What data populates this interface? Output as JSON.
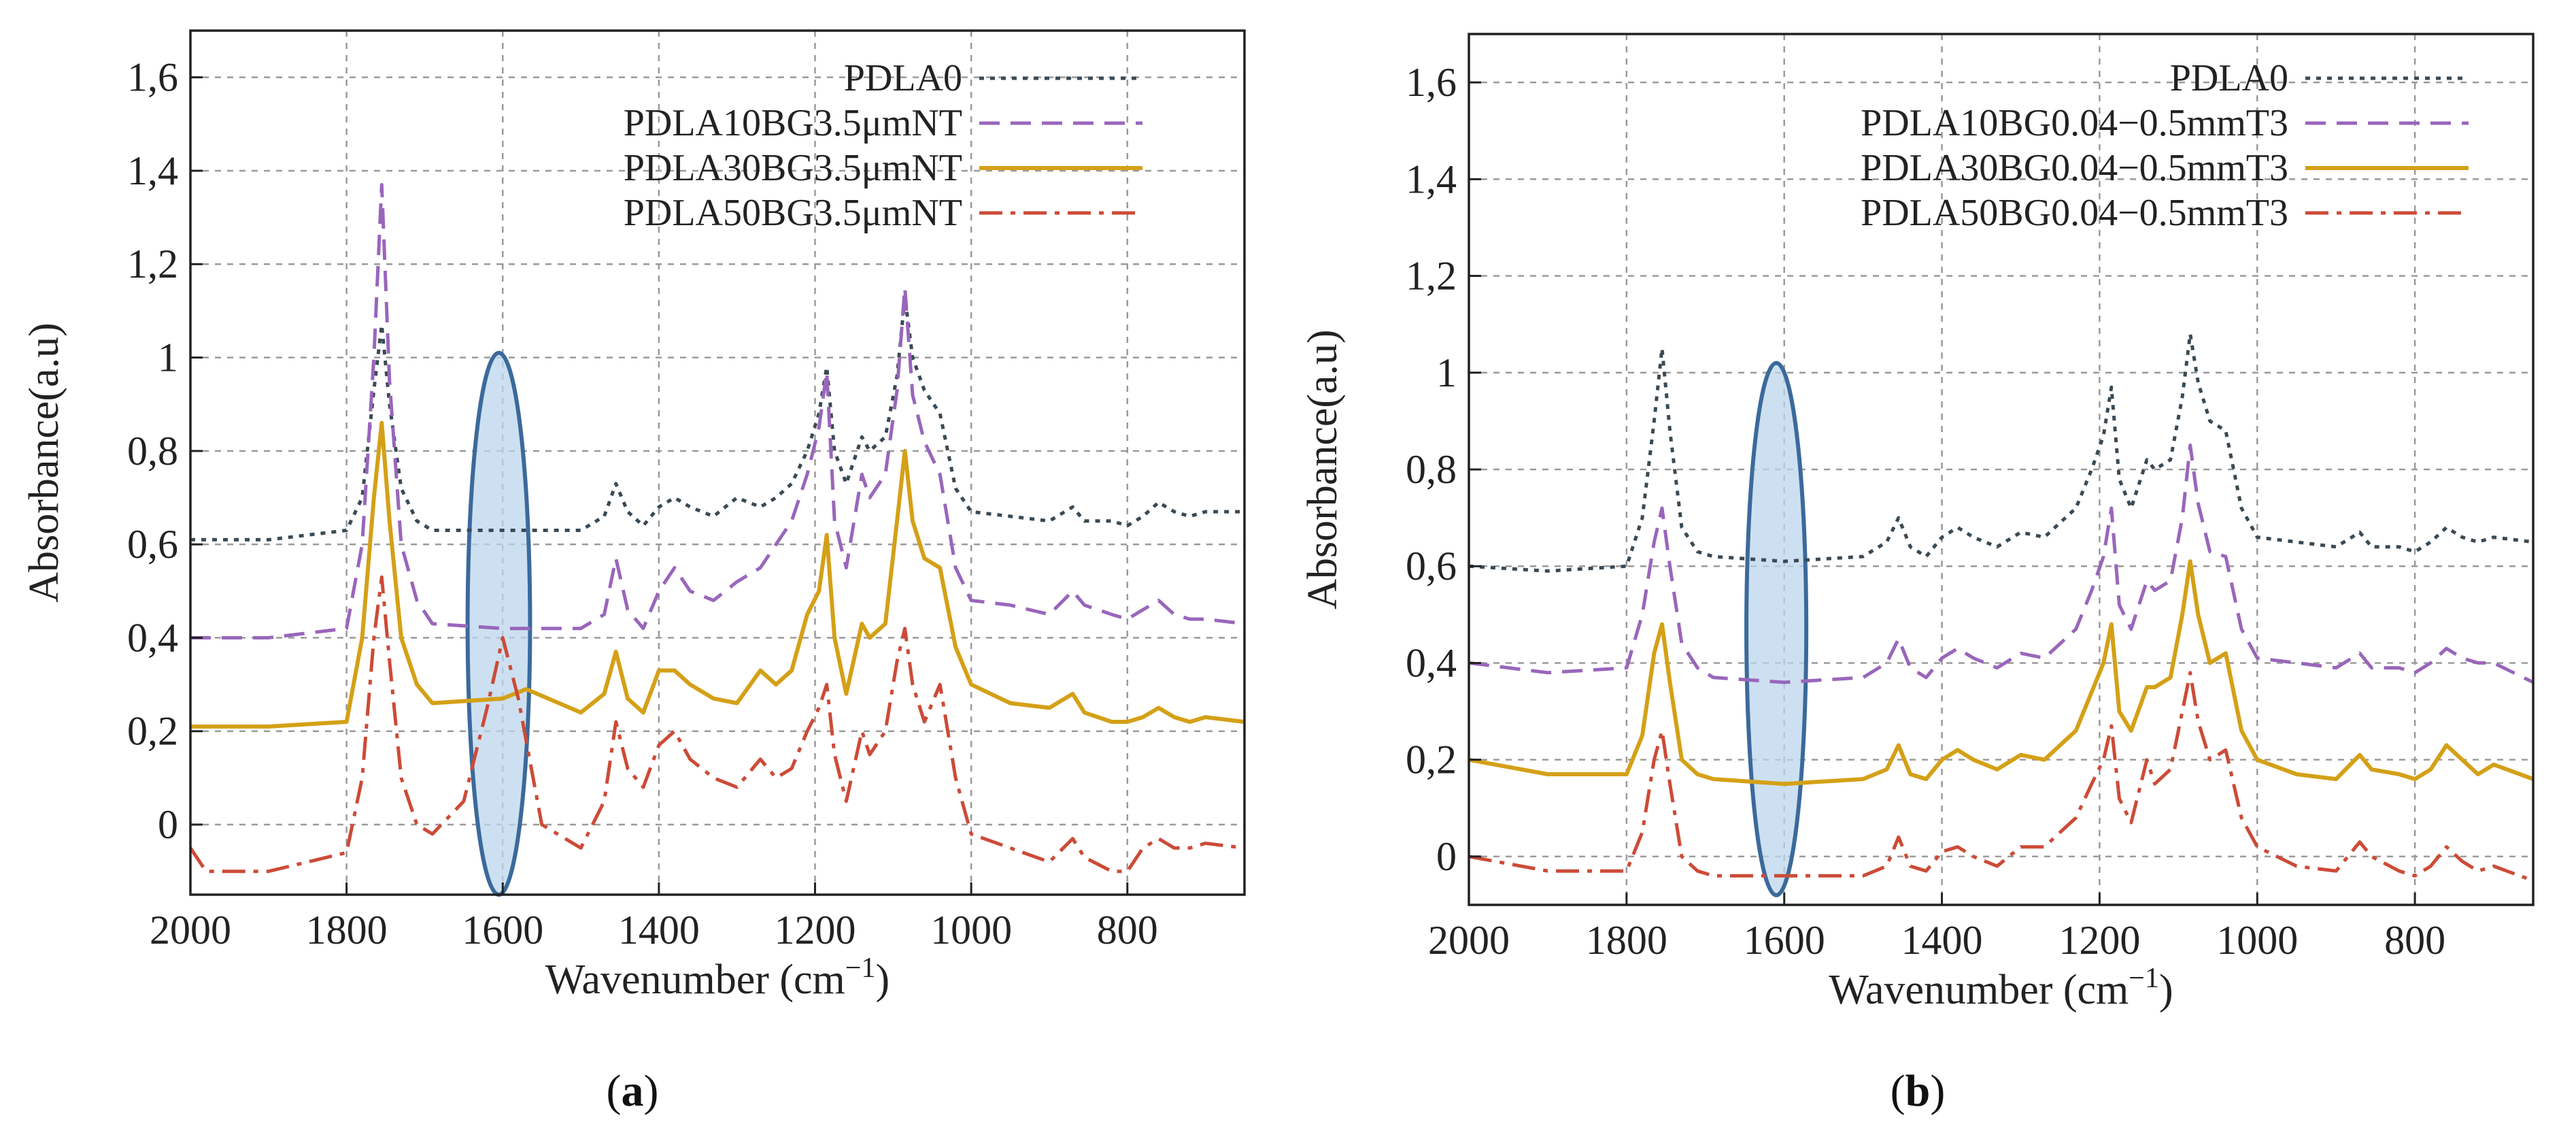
{
  "figure_caption_a": {
    "open": "(",
    "letter": "a",
    "close": ")"
  },
  "figure_caption_b": {
    "open": "(",
    "letter": "b",
    "close": ")"
  },
  "colors": {
    "PDLA0": "#3a4a55",
    "PDLA10": "#9966bb",
    "PDLA30": "#d4a017",
    "PDLA50": "#cc4b37",
    "ellipse_fill": "#bcd6ec",
    "ellipse_stroke": "#3b6a9b"
  },
  "chart_data": [
    {
      "type": "line",
      "panel": "a",
      "xlabel": "Wavenumber (cm",
      "xlabel_sup": "−1",
      "xlabel_close": ")",
      "ylabel": "Absorbance(a.u)",
      "xlim": [
        2000,
        650
      ],
      "ylim": [
        -0.15,
        1.7
      ],
      "xticks": [
        2000,
        1800,
        1600,
        1400,
        1200,
        1000,
        800
      ],
      "xtick_labels": [
        "2000",
        "1800",
        "1600",
        "1400",
        "1200",
        "1000",
        "800"
      ],
      "yticks": [
        0,
        0.2,
        0.4,
        0.6,
        0.8,
        1,
        1.2,
        1.4,
        1.6
      ],
      "ytick_labels": [
        "0",
        "0,2",
        "0,4",
        "0,6",
        "0,8",
        "1",
        "1,2",
        "1,4",
        "1,6"
      ],
      "legend_position": "top-right",
      "highlight": {
        "center_x": 1605,
        "center_y": 0.43,
        "half_width_x": 40,
        "half_height_y": 0.58
      },
      "series": [
        {
          "name": "PDLA0",
          "color_key": "PDLA0",
          "dash": "dotted",
          "x": [
            2000,
            1900,
            1800,
            1780,
            1765,
            1755,
            1745,
            1730,
            1710,
            1690,
            1600,
            1500,
            1470,
            1455,
            1440,
            1420,
            1400,
            1380,
            1360,
            1330,
            1300,
            1270,
            1250,
            1230,
            1210,
            1195,
            1185,
            1175,
            1160,
            1140,
            1130,
            1110,
            1095,
            1085,
            1075,
            1060,
            1040,
            1020,
            1000,
            950,
            900,
            870,
            855,
            820,
            800,
            780,
            760,
            740,
            720,
            700,
            650
          ],
          "y": [
            0.61,
            0.61,
            0.63,
            0.7,
            0.93,
            1.07,
            0.9,
            0.72,
            0.65,
            0.63,
            0.63,
            0.63,
            0.66,
            0.73,
            0.67,
            0.64,
            0.68,
            0.7,
            0.68,
            0.66,
            0.7,
            0.68,
            0.7,
            0.73,
            0.8,
            0.88,
            0.98,
            0.8,
            0.73,
            0.83,
            0.8,
            0.83,
            0.96,
            1.13,
            1.0,
            0.93,
            0.88,
            0.72,
            0.67,
            0.66,
            0.65,
            0.68,
            0.65,
            0.65,
            0.64,
            0.66,
            0.69,
            0.67,
            0.66,
            0.67,
            0.67
          ]
        },
        {
          "name": "PDLA10BG3.5μmNT",
          "color_key": "PDLA10",
          "dash": "dashed",
          "x": [
            2000,
            1900,
            1800,
            1780,
            1765,
            1755,
            1745,
            1730,
            1710,
            1690,
            1600,
            1500,
            1470,
            1455,
            1440,
            1420,
            1400,
            1380,
            1360,
            1330,
            1300,
            1270,
            1250,
            1230,
            1210,
            1195,
            1185,
            1175,
            1160,
            1140,
            1130,
            1110,
            1095,
            1085,
            1075,
            1060,
            1040,
            1020,
            1000,
            950,
            900,
            870,
            855,
            820,
            800,
            780,
            760,
            740,
            720,
            700,
            650
          ],
          "y": [
            0.4,
            0.4,
            0.42,
            0.6,
            1.0,
            1.37,
            0.95,
            0.6,
            0.48,
            0.43,
            0.42,
            0.42,
            0.45,
            0.57,
            0.46,
            0.42,
            0.5,
            0.55,
            0.5,
            0.48,
            0.52,
            0.55,
            0.6,
            0.65,
            0.75,
            0.85,
            0.97,
            0.65,
            0.55,
            0.75,
            0.7,
            0.75,
            0.93,
            1.15,
            0.92,
            0.82,
            0.75,
            0.55,
            0.48,
            0.47,
            0.45,
            0.5,
            0.47,
            0.45,
            0.44,
            0.46,
            0.48,
            0.45,
            0.44,
            0.44,
            0.43
          ]
        },
        {
          "name": "PDLA30BG3.5μmNT",
          "color_key": "PDLA30",
          "dash": "solid",
          "x": [
            2000,
            1900,
            1800,
            1780,
            1765,
            1755,
            1745,
            1730,
            1710,
            1690,
            1600,
            1570,
            1500,
            1470,
            1455,
            1440,
            1420,
            1400,
            1380,
            1360,
            1330,
            1300,
            1270,
            1250,
            1230,
            1210,
            1195,
            1185,
            1175,
            1160,
            1140,
            1130,
            1110,
            1095,
            1085,
            1075,
            1060,
            1040,
            1020,
            1000,
            950,
            900,
            870,
            855,
            820,
            800,
            780,
            760,
            740,
            720,
            700,
            650
          ],
          "y": [
            0.21,
            0.21,
            0.22,
            0.4,
            0.7,
            0.86,
            0.65,
            0.4,
            0.3,
            0.26,
            0.27,
            0.29,
            0.24,
            0.28,
            0.37,
            0.27,
            0.24,
            0.33,
            0.33,
            0.3,
            0.27,
            0.26,
            0.33,
            0.3,
            0.33,
            0.45,
            0.5,
            0.62,
            0.4,
            0.28,
            0.43,
            0.4,
            0.43,
            0.65,
            0.8,
            0.65,
            0.57,
            0.55,
            0.38,
            0.3,
            0.26,
            0.25,
            0.28,
            0.24,
            0.22,
            0.22,
            0.23,
            0.25,
            0.23,
            0.22,
            0.23,
            0.22
          ]
        },
        {
          "name": "PDLA50BG3.5μmNT",
          "color_key": "PDLA50",
          "dash": "dashdot",
          "x": [
            2000,
            1980,
            1900,
            1800,
            1780,
            1765,
            1755,
            1745,
            1730,
            1710,
            1690,
            1650,
            1620,
            1600,
            1580,
            1550,
            1500,
            1470,
            1455,
            1440,
            1420,
            1400,
            1380,
            1360,
            1330,
            1300,
            1270,
            1250,
            1230,
            1210,
            1195,
            1185,
            1175,
            1160,
            1140,
            1130,
            1110,
            1095,
            1085,
            1075,
            1060,
            1040,
            1020,
            1000,
            950,
            900,
            870,
            855,
            820,
            800,
            780,
            760,
            740,
            720,
            700,
            650
          ],
          "y": [
            -0.05,
            -0.1,
            -0.1,
            -0.06,
            0.1,
            0.4,
            0.53,
            0.35,
            0.1,
            0.0,
            -0.02,
            0.05,
            0.25,
            0.4,
            0.27,
            0.0,
            -0.05,
            0.05,
            0.22,
            0.12,
            0.08,
            0.17,
            0.2,
            0.14,
            0.1,
            0.08,
            0.14,
            0.1,
            0.12,
            0.2,
            0.25,
            0.3,
            0.15,
            0.05,
            0.2,
            0.15,
            0.2,
            0.35,
            0.42,
            0.3,
            0.22,
            0.3,
            0.1,
            -0.02,
            -0.05,
            -0.08,
            -0.03,
            -0.07,
            -0.1,
            -0.1,
            -0.05,
            -0.03,
            -0.05,
            -0.05,
            -0.04,
            -0.05
          ]
        }
      ]
    },
    {
      "type": "line",
      "panel": "b",
      "xlabel": "Wavenumber (cm",
      "xlabel_sup": "−1",
      "xlabel_close": ")",
      "ylabel": "Absorbance(a.u)",
      "xlim": [
        2000,
        650
      ],
      "ylim": [
        -0.1,
        1.7
      ],
      "xticks": [
        2000,
        1800,
        1600,
        1400,
        1200,
        1000,
        800
      ],
      "xtick_labels": [
        "2000",
        "1800",
        "1600",
        "1400",
        "1200",
        "1000",
        "800"
      ],
      "yticks": [
        0,
        0.2,
        0.4,
        0.6,
        0.8,
        1,
        1.2,
        1.4,
        1.6
      ],
      "ytick_labels": [
        "0",
        "0,2",
        "0,4",
        "0,6",
        "0,8",
        "1",
        "1,2",
        "1,4",
        "1,6"
      ],
      "legend_position": "top-right",
      "highlight": {
        "center_x": 1610,
        "center_y": 0.47,
        "half_width_x": 38,
        "half_height_y": 0.55
      },
      "series": [
        {
          "name": "PDLA0",
          "color_key": "PDLA0",
          "dash": "dotted",
          "x": [
            2000,
            1900,
            1800,
            1780,
            1765,
            1755,
            1745,
            1730,
            1710,
            1690,
            1600,
            1500,
            1470,
            1455,
            1440,
            1420,
            1400,
            1380,
            1360,
            1330,
            1300,
            1270,
            1250,
            1230,
            1210,
            1195,
            1185,
            1175,
            1160,
            1140,
            1130,
            1110,
            1095,
            1085,
            1075,
            1060,
            1040,
            1020,
            1000,
            950,
            900,
            870,
            855,
            820,
            800,
            780,
            760,
            740,
            720,
            700,
            650
          ],
          "y": [
            0.6,
            0.59,
            0.6,
            0.7,
            0.9,
            1.05,
            0.88,
            0.68,
            0.63,
            0.62,
            0.61,
            0.62,
            0.65,
            0.7,
            0.64,
            0.62,
            0.66,
            0.68,
            0.66,
            0.64,
            0.67,
            0.66,
            0.69,
            0.72,
            0.8,
            0.87,
            0.97,
            0.78,
            0.72,
            0.82,
            0.8,
            0.82,
            0.95,
            1.08,
            0.98,
            0.9,
            0.88,
            0.72,
            0.66,
            0.65,
            0.64,
            0.67,
            0.64,
            0.64,
            0.63,
            0.65,
            0.68,
            0.66,
            0.65,
            0.66,
            0.65
          ]
        },
        {
          "name": "PDLA10BG0.04−0.5mmT3",
          "color_key": "PDLA10",
          "dash": "dashed",
          "x": [
            2000,
            1900,
            1800,
            1780,
            1765,
            1755,
            1745,
            1730,
            1710,
            1690,
            1600,
            1500,
            1470,
            1455,
            1440,
            1420,
            1400,
            1380,
            1360,
            1330,
            1300,
            1270,
            1250,
            1230,
            1210,
            1195,
            1185,
            1175,
            1160,
            1140,
            1130,
            1110,
            1095,
            1085,
            1075,
            1060,
            1040,
            1020,
            1000,
            950,
            900,
            870,
            855,
            820,
            800,
            780,
            760,
            740,
            720,
            700,
            650
          ],
          "y": [
            0.4,
            0.38,
            0.39,
            0.5,
            0.65,
            0.72,
            0.6,
            0.44,
            0.39,
            0.37,
            0.36,
            0.37,
            0.4,
            0.45,
            0.39,
            0.37,
            0.41,
            0.43,
            0.41,
            0.39,
            0.42,
            0.41,
            0.44,
            0.47,
            0.55,
            0.62,
            0.72,
            0.52,
            0.47,
            0.57,
            0.55,
            0.57,
            0.7,
            0.85,
            0.73,
            0.63,
            0.62,
            0.47,
            0.41,
            0.4,
            0.39,
            0.42,
            0.39,
            0.39,
            0.38,
            0.4,
            0.43,
            0.41,
            0.4,
            0.4,
            0.36
          ]
        },
        {
          "name": "PDLA30BG0.04−0.5mmT3",
          "color_key": "PDLA30",
          "dash": "solid",
          "x": [
            2000,
            1900,
            1800,
            1780,
            1765,
            1755,
            1745,
            1730,
            1710,
            1690,
            1600,
            1500,
            1470,
            1455,
            1440,
            1420,
            1400,
            1380,
            1360,
            1330,
            1300,
            1270,
            1250,
            1230,
            1210,
            1195,
            1185,
            1175,
            1160,
            1140,
            1130,
            1110,
            1095,
            1085,
            1075,
            1060,
            1040,
            1020,
            1000,
            950,
            900,
            870,
            855,
            820,
            800,
            780,
            760,
            740,
            720,
            700,
            650
          ],
          "y": [
            0.2,
            0.17,
            0.17,
            0.25,
            0.42,
            0.48,
            0.36,
            0.2,
            0.17,
            0.16,
            0.15,
            0.16,
            0.18,
            0.23,
            0.17,
            0.16,
            0.2,
            0.22,
            0.2,
            0.18,
            0.21,
            0.2,
            0.23,
            0.26,
            0.34,
            0.4,
            0.48,
            0.3,
            0.26,
            0.35,
            0.35,
            0.37,
            0.5,
            0.61,
            0.5,
            0.4,
            0.42,
            0.26,
            0.2,
            0.17,
            0.16,
            0.21,
            0.18,
            0.17,
            0.16,
            0.18,
            0.23,
            0.2,
            0.17,
            0.19,
            0.16
          ]
        },
        {
          "name": "PDLA50BG0.04−0.5mmT3",
          "color_key": "PDLA50",
          "dash": "dashdot",
          "x": [
            2000,
            1900,
            1800,
            1780,
            1765,
            1755,
            1745,
            1730,
            1710,
            1690,
            1600,
            1500,
            1470,
            1455,
            1440,
            1420,
            1400,
            1380,
            1360,
            1330,
            1300,
            1270,
            1250,
            1230,
            1210,
            1195,
            1185,
            1175,
            1160,
            1140,
            1130,
            1110,
            1095,
            1085,
            1075,
            1060,
            1040,
            1020,
            1000,
            950,
            900,
            870,
            855,
            820,
            800,
            780,
            760,
            740,
            720,
            700,
            650
          ],
          "y": [
            0.0,
            -0.03,
            -0.03,
            0.05,
            0.2,
            0.26,
            0.15,
            0.0,
            -0.03,
            -0.04,
            -0.04,
            -0.04,
            -0.02,
            0.04,
            -0.02,
            -0.03,
            0.01,
            0.02,
            0.0,
            -0.02,
            0.02,
            0.02,
            0.05,
            0.08,
            0.15,
            0.2,
            0.27,
            0.12,
            0.07,
            0.2,
            0.15,
            0.18,
            0.3,
            0.38,
            0.28,
            0.2,
            0.22,
            0.08,
            0.02,
            -0.02,
            -0.03,
            0.03,
            0.0,
            -0.03,
            -0.04,
            -0.02,
            0.02,
            -0.01,
            -0.03,
            -0.02,
            -0.05
          ]
        }
      ]
    }
  ]
}
